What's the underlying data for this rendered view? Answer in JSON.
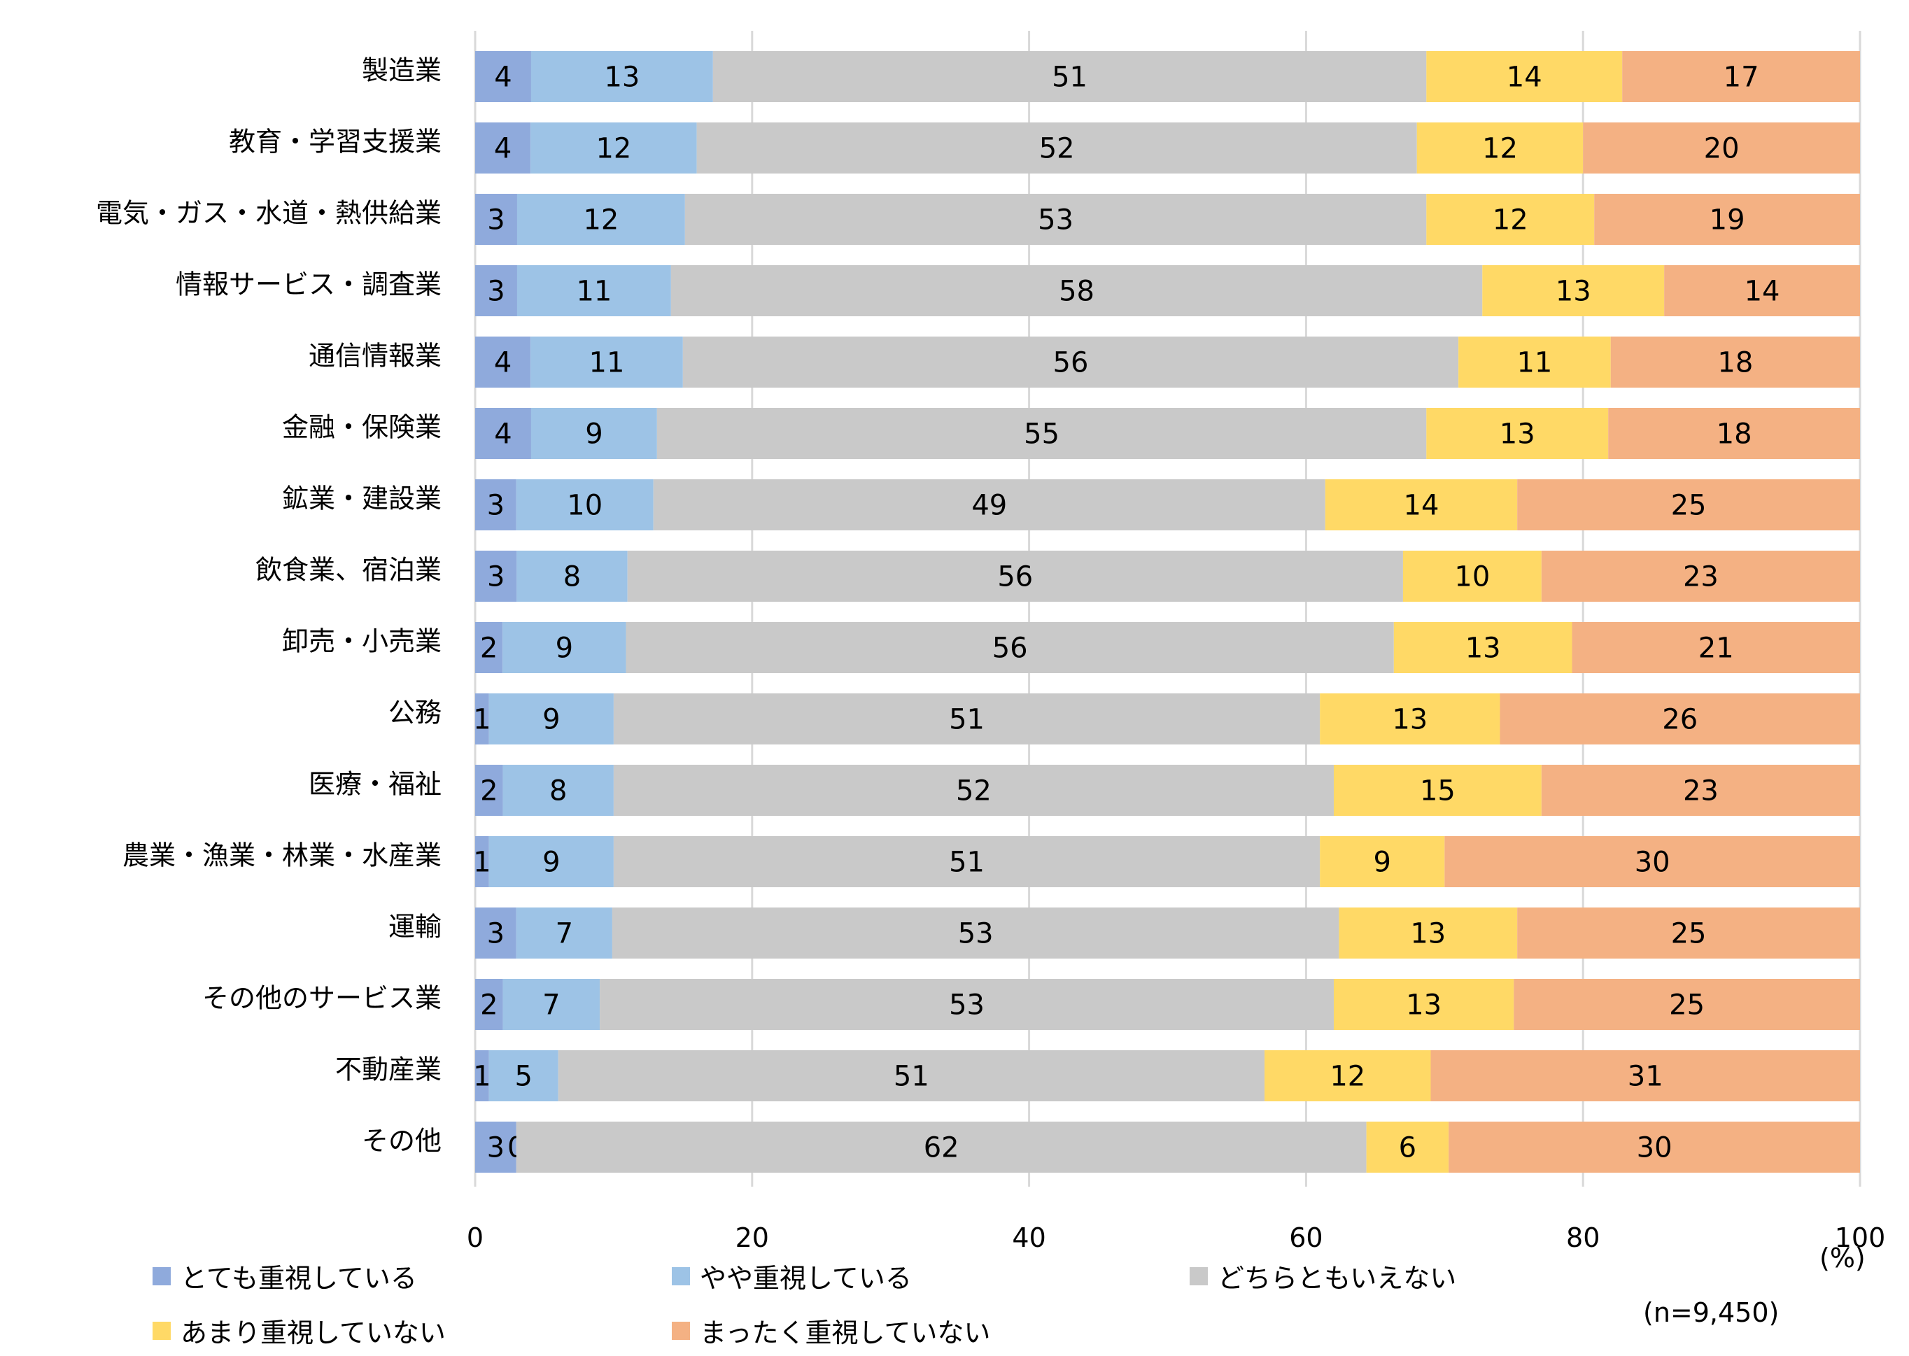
{
  "chart_data": {
    "type": "bar",
    "orientation": "horizontal",
    "stacked": "percent",
    "title": "",
    "xlabel": "",
    "unit_label": "(%)",
    "sample_note": "(n=9,450)",
    "xlim": [
      0,
      100
    ],
    "xticks": [
      0,
      20,
      40,
      60,
      80,
      100
    ],
    "grid": true,
    "legend_position": "bottom",
    "categories": [
      "製造業",
      "教育・学習支援業",
      "電気・ガス・水道・熱供給業",
      "情報サービス・調査業",
      "通信情報業",
      "金融・保険業",
      "鉱業・建設業",
      "飲食業、宿泊業",
      "卸売・小売業",
      "公務",
      "医療・福祉",
      "農業・漁業・林業・水産業",
      "運輸",
      "その他のサービス業",
      "不動産業",
      "その他"
    ],
    "series": [
      {
        "name": "とても重視している",
        "color": "#8faadc",
        "values": [
          4,
          4,
          3,
          3,
          4,
          4,
          3,
          3,
          2,
          1,
          2,
          1,
          3,
          2,
          1,
          3
        ]
      },
      {
        "name": "やや重視している",
        "color": "#9dc3e6",
        "values": [
          13,
          12,
          12,
          11,
          11,
          9,
          10,
          8,
          9,
          9,
          8,
          9,
          7,
          7,
          5,
          0
        ]
      },
      {
        "name": "どちらともいえない",
        "color": "#c9c9c9",
        "values": [
          51,
          52,
          53,
          58,
          56,
          55,
          49,
          56,
          56,
          51,
          52,
          51,
          53,
          53,
          51,
          62
        ]
      },
      {
        "name": "あまり重視していない",
        "color": "#ffd966",
        "values": [
          14,
          12,
          12,
          13,
          11,
          13,
          14,
          10,
          13,
          13,
          15,
          9,
          13,
          13,
          12,
          6
        ]
      },
      {
        "name": "まったく重視していない",
        "color": "#f4b183",
        "values": [
          17,
          20,
          19,
          14,
          18,
          18,
          25,
          23,
          21,
          26,
          23,
          30,
          25,
          25,
          31,
          30
        ]
      }
    ]
  }
}
